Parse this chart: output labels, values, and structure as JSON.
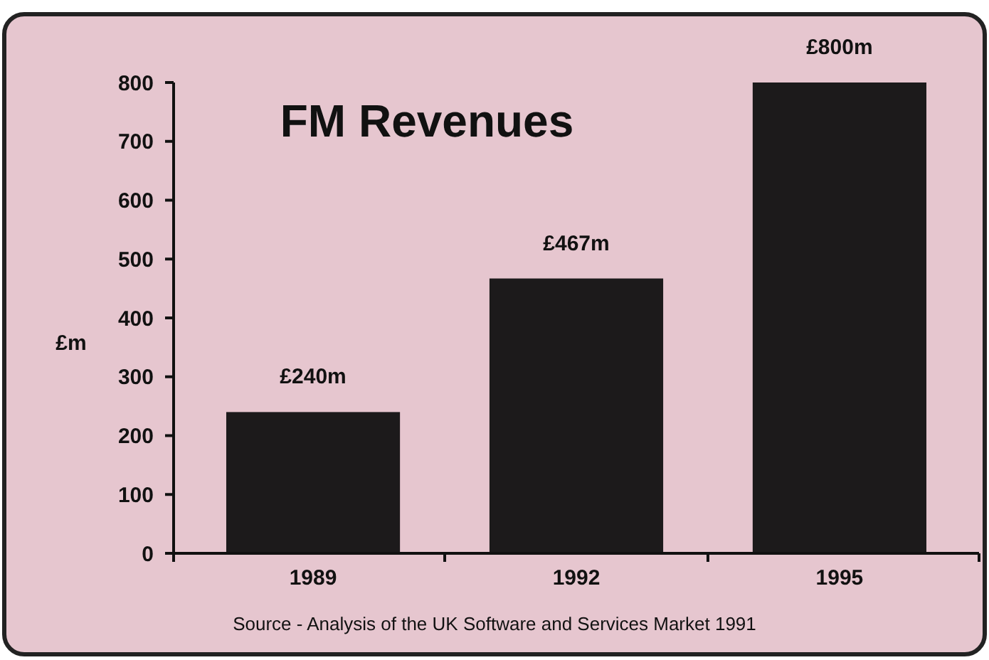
{
  "chart_data": {
    "type": "bar",
    "title": "FM Revenues",
    "ylabel": "£m",
    "categories": [
      "1989",
      "1992",
      "1995"
    ],
    "values": [
      240,
      467,
      800
    ],
    "value_labels": [
      "£240m",
      "£467m",
      "£800m"
    ],
    "color": "#1c1a1b",
    "ylim": [
      0,
      800
    ],
    "yticks": [
      0,
      100,
      200,
      300,
      400,
      500,
      600,
      700,
      800
    ],
    "grid": false,
    "annotations": [
      "Source - Analysis of the UK Software and Services Market 1991"
    ]
  }
}
